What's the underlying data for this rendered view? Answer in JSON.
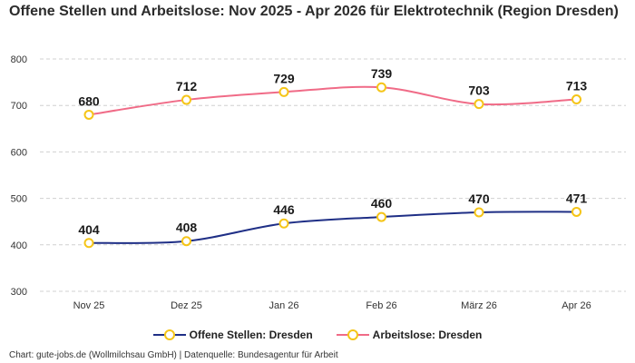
{
  "title": "Offene Stellen und Arbeitslose: Nov 2025 - Apr 2026 für Elektrotechnik (Region Dresden)",
  "credit": "Chart: gute-jobs.de (Wollmilchsau GmbH) | Datenquelle: Bundesagentur für Arbeit",
  "colors": {
    "marker": "#f5c518",
    "grid": "#d0d0d0"
  },
  "chart_data": {
    "type": "line",
    "categories": [
      "Nov 25",
      "Dez 25",
      "Jan 26",
      "Feb 26",
      "März 26",
      "Apr 26"
    ],
    "ylim": [
      300,
      800
    ],
    "yticks": [
      300,
      400,
      500,
      600,
      700,
      800
    ],
    "grid": true,
    "legend": "bottom-center",
    "series": [
      {
        "name": "Offene Stellen: Dresden",
        "color": "#1f2f86",
        "values": [
          404,
          408,
          446,
          460,
          470,
          471
        ]
      },
      {
        "name": "Arbeitslose: Dresden",
        "color": "#f06b87",
        "values": [
          680,
          712,
          729,
          739,
          703,
          713
        ]
      }
    ]
  }
}
